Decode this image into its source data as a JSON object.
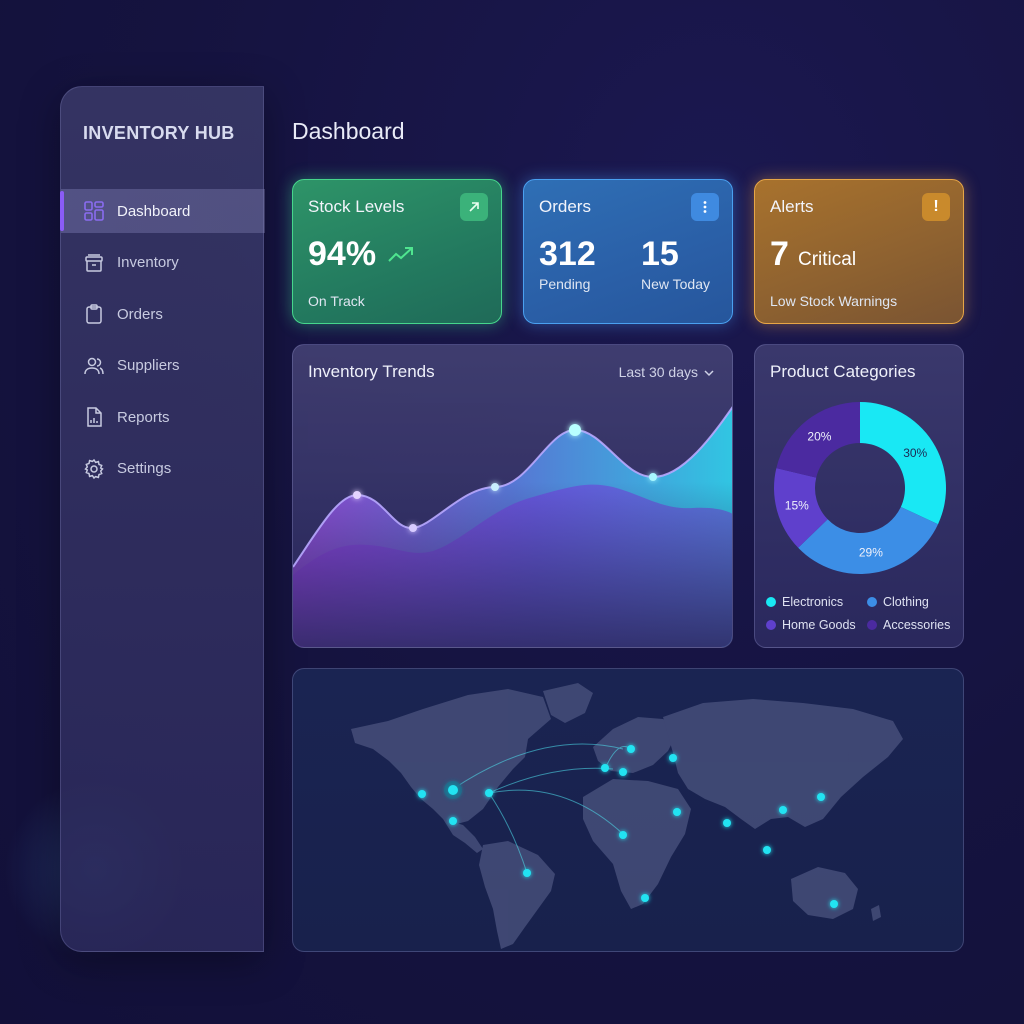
{
  "sidebar": {
    "brand": "INVENTORY HUB",
    "items": [
      {
        "label": "Dashboard",
        "icon": "dashboard-icon",
        "active": true
      },
      {
        "label": "Inventory",
        "icon": "archive-box-icon",
        "active": false
      },
      {
        "label": "Orders",
        "icon": "clipboard-icon",
        "active": false
      },
      {
        "label": "Suppliers",
        "icon": "users-icon",
        "active": false
      },
      {
        "label": "Reports",
        "icon": "report-icon",
        "active": false
      },
      {
        "label": "Settings",
        "icon": "gear-icon",
        "active": false
      }
    ]
  },
  "header": {
    "title": "Dashboard"
  },
  "cards": {
    "stock": {
      "title": "Stock Levels",
      "value": "94%",
      "status": "On Track",
      "badge_icon": "arrow-up-right-icon",
      "color": "#2e9468"
    },
    "orders": {
      "title": "Orders",
      "pending_value": "312",
      "pending_label": "Pending",
      "new_value": "15",
      "new_label": "New Today",
      "badge_icon": "more-vertical-icon",
      "color": "#2f6fb5"
    },
    "alerts": {
      "title": "Alerts",
      "value": "7",
      "value_label": "Critical",
      "status": "Low Stock Warnings",
      "badge_icon": "exclamation-icon",
      "color": "#a8722d"
    }
  },
  "trends": {
    "title": "Inventory Trends",
    "range": "Last 30 days"
  },
  "categories": {
    "title": "Product Categories",
    "chart_data": {
      "type": "pie",
      "title": "Product Categories",
      "labels": [
        "Electronics",
        "Clothing",
        "Home Goods",
        "Accessories"
      ],
      "values": [
        30,
        29,
        15,
        20
      ],
      "value_labels": [
        "30%",
        "29%",
        "15%",
        "20%"
      ],
      "colors": [
        "#19e8f4",
        "#3c8ee6",
        "#5f40cc",
        "#4b2aa0"
      ],
      "legend": "bottom"
    }
  },
  "map": {
    "accent": "#22e3f2"
  }
}
